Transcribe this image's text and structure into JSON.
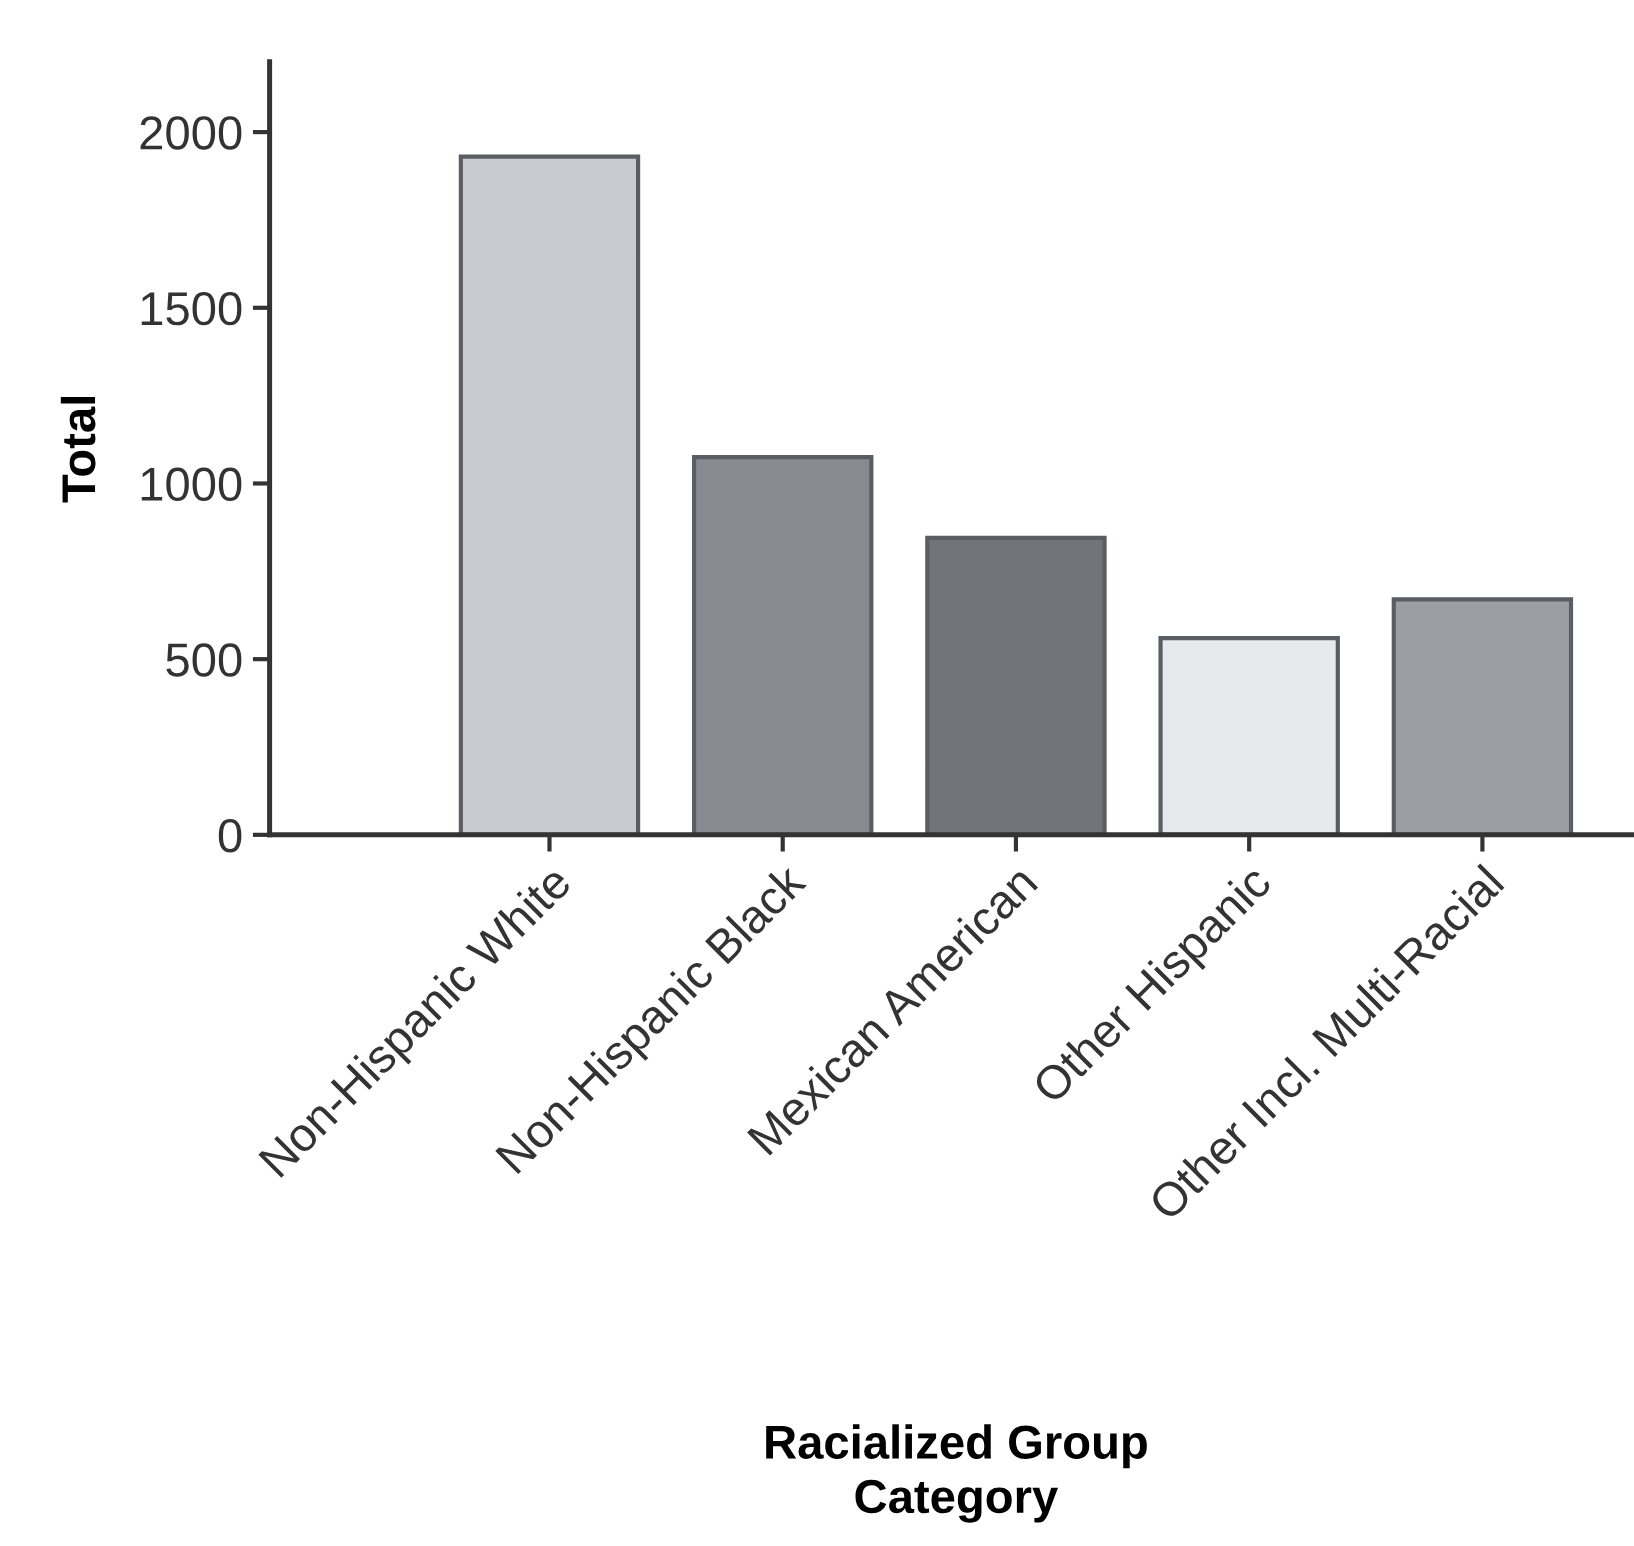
{
  "chart_data": {
    "type": "bar",
    "xlabel": "Racialized Group\nCategory",
    "ylabel": "Total",
    "categories": [
      "Non-Hispanic White",
      "Non-Hispanic Black",
      "Mexican American",
      "Other Hispanic",
      "Other Incl. Multi-Racial"
    ],
    "values": [
      1930,
      1075,
      845,
      560,
      670
    ],
    "colors": [
      "#c8cbcf",
      "#878a91",
      "#71747b",
      "#e8e9ea",
      "#9c9ea3"
    ],
    "ylim": [
      0,
      2200
    ],
    "yticks": [
      0,
      500,
      1000,
      1500,
      2000
    ],
    "grid": false,
    "legend": false
  }
}
